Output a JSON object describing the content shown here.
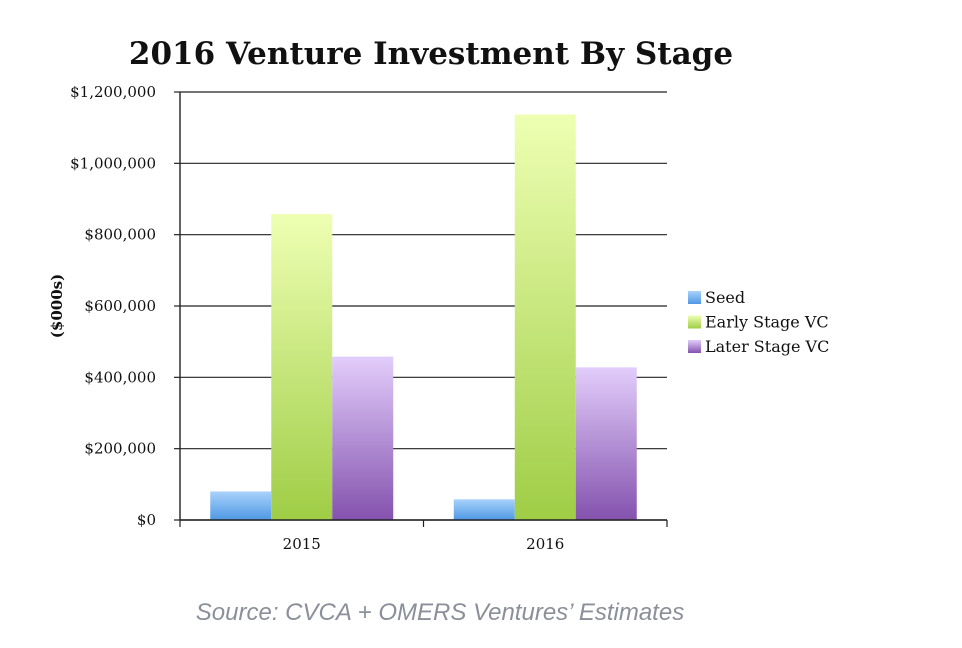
{
  "chart_data": {
    "type": "bar",
    "title": "2016 Venture Investment By Stage",
    "ylabel": "($000s)",
    "xlabel": "",
    "categories": [
      "2015",
      "2016"
    ],
    "series": [
      {
        "name": "Seed",
        "values": [
          80000,
          58000
        ]
      },
      {
        "name": "Early Stage VC",
        "values": [
          858000,
          1137000
        ]
      },
      {
        "name": "Later Stage VC",
        "values": [
          458000,
          428000
        ]
      }
    ],
    "ylim": [
      0,
      1200000
    ],
    "yticks": [
      0,
      200000,
      400000,
      600000,
      800000,
      1000000,
      1200000
    ],
    "ytick_labels": [
      "$0",
      "$200,000",
      "$400,000",
      "$600,000",
      "$800,000",
      "$1,000,000",
      "$1,200,000"
    ],
    "grid": true,
    "legend_position": "right",
    "colors": {
      "Seed": [
        "#a9d2fb",
        "#4e98e4"
      ],
      "Early Stage VC": [
        "#eeffb3",
        "#9fcd46"
      ],
      "Later Stage VC": [
        "#e2cdfb",
        "#8452ae"
      ]
    }
  },
  "source": "Source: CVCA + OMERS Ventures’ Estimates"
}
